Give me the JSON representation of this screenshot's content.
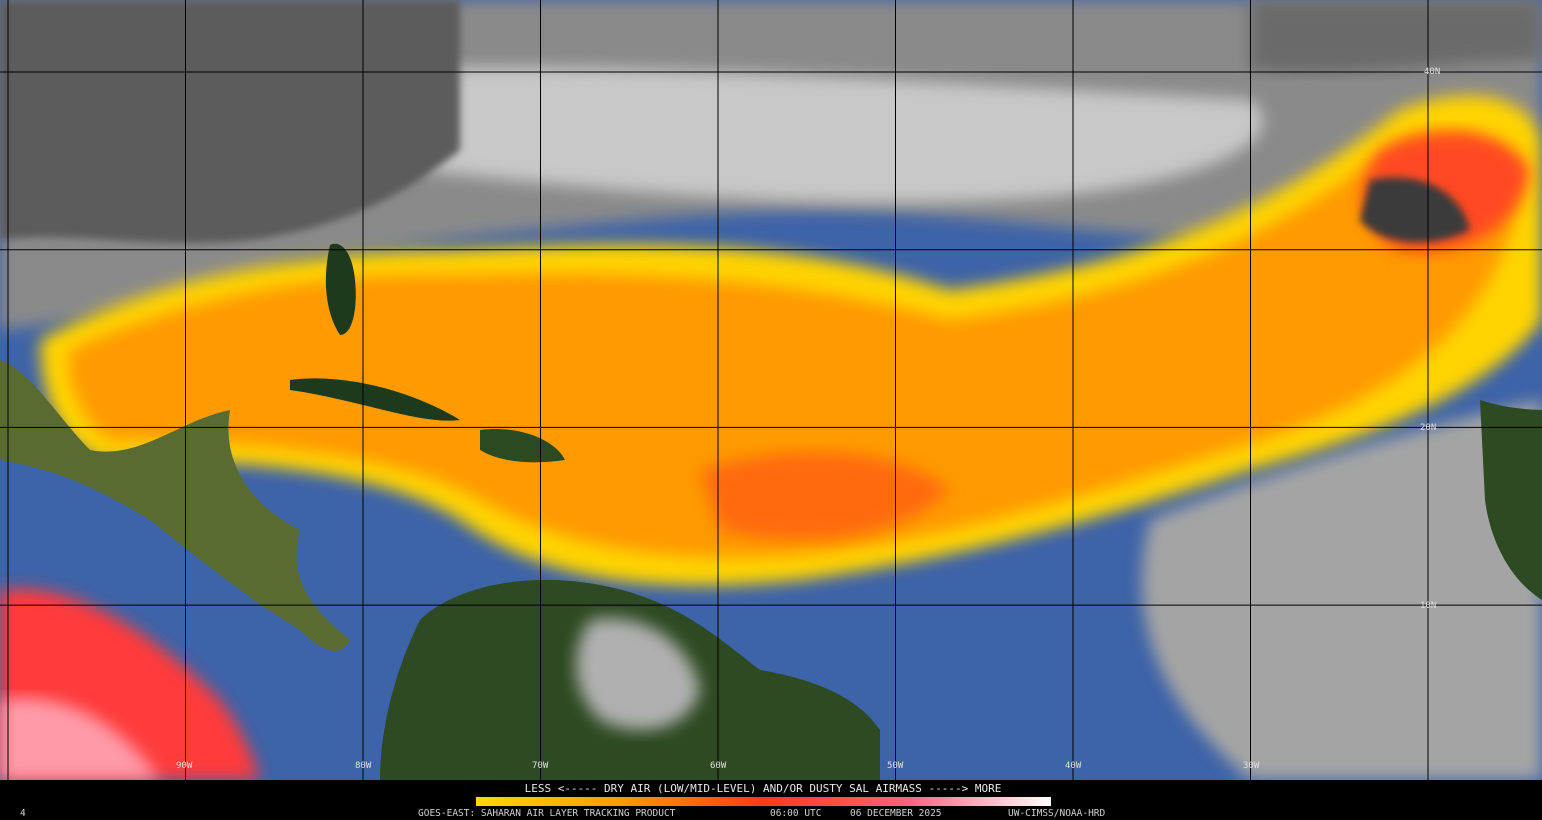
{
  "map": {
    "grid_labels": {
      "latitude": [
        "40N",
        "20N",
        "10N"
      ],
      "longitude": [
        "90W",
        "80W",
        "70W",
        "60W",
        "50W",
        "40W",
        "30W"
      ]
    }
  },
  "legend": {
    "caption": "LESS <----- DRY AIR (LOW/MID-LEVEL) AND/OR DUSTY SAL AIRMASS -----> MORE"
  },
  "footer": {
    "frame": "4",
    "product": "GOES-EAST: SAHARAN AIR LAYER TRACKING PRODUCT",
    "time": "06:00 UTC",
    "date": "06 DECEMBER 2025",
    "credit": "UW-CIMSS/NOAA-HRD"
  }
}
